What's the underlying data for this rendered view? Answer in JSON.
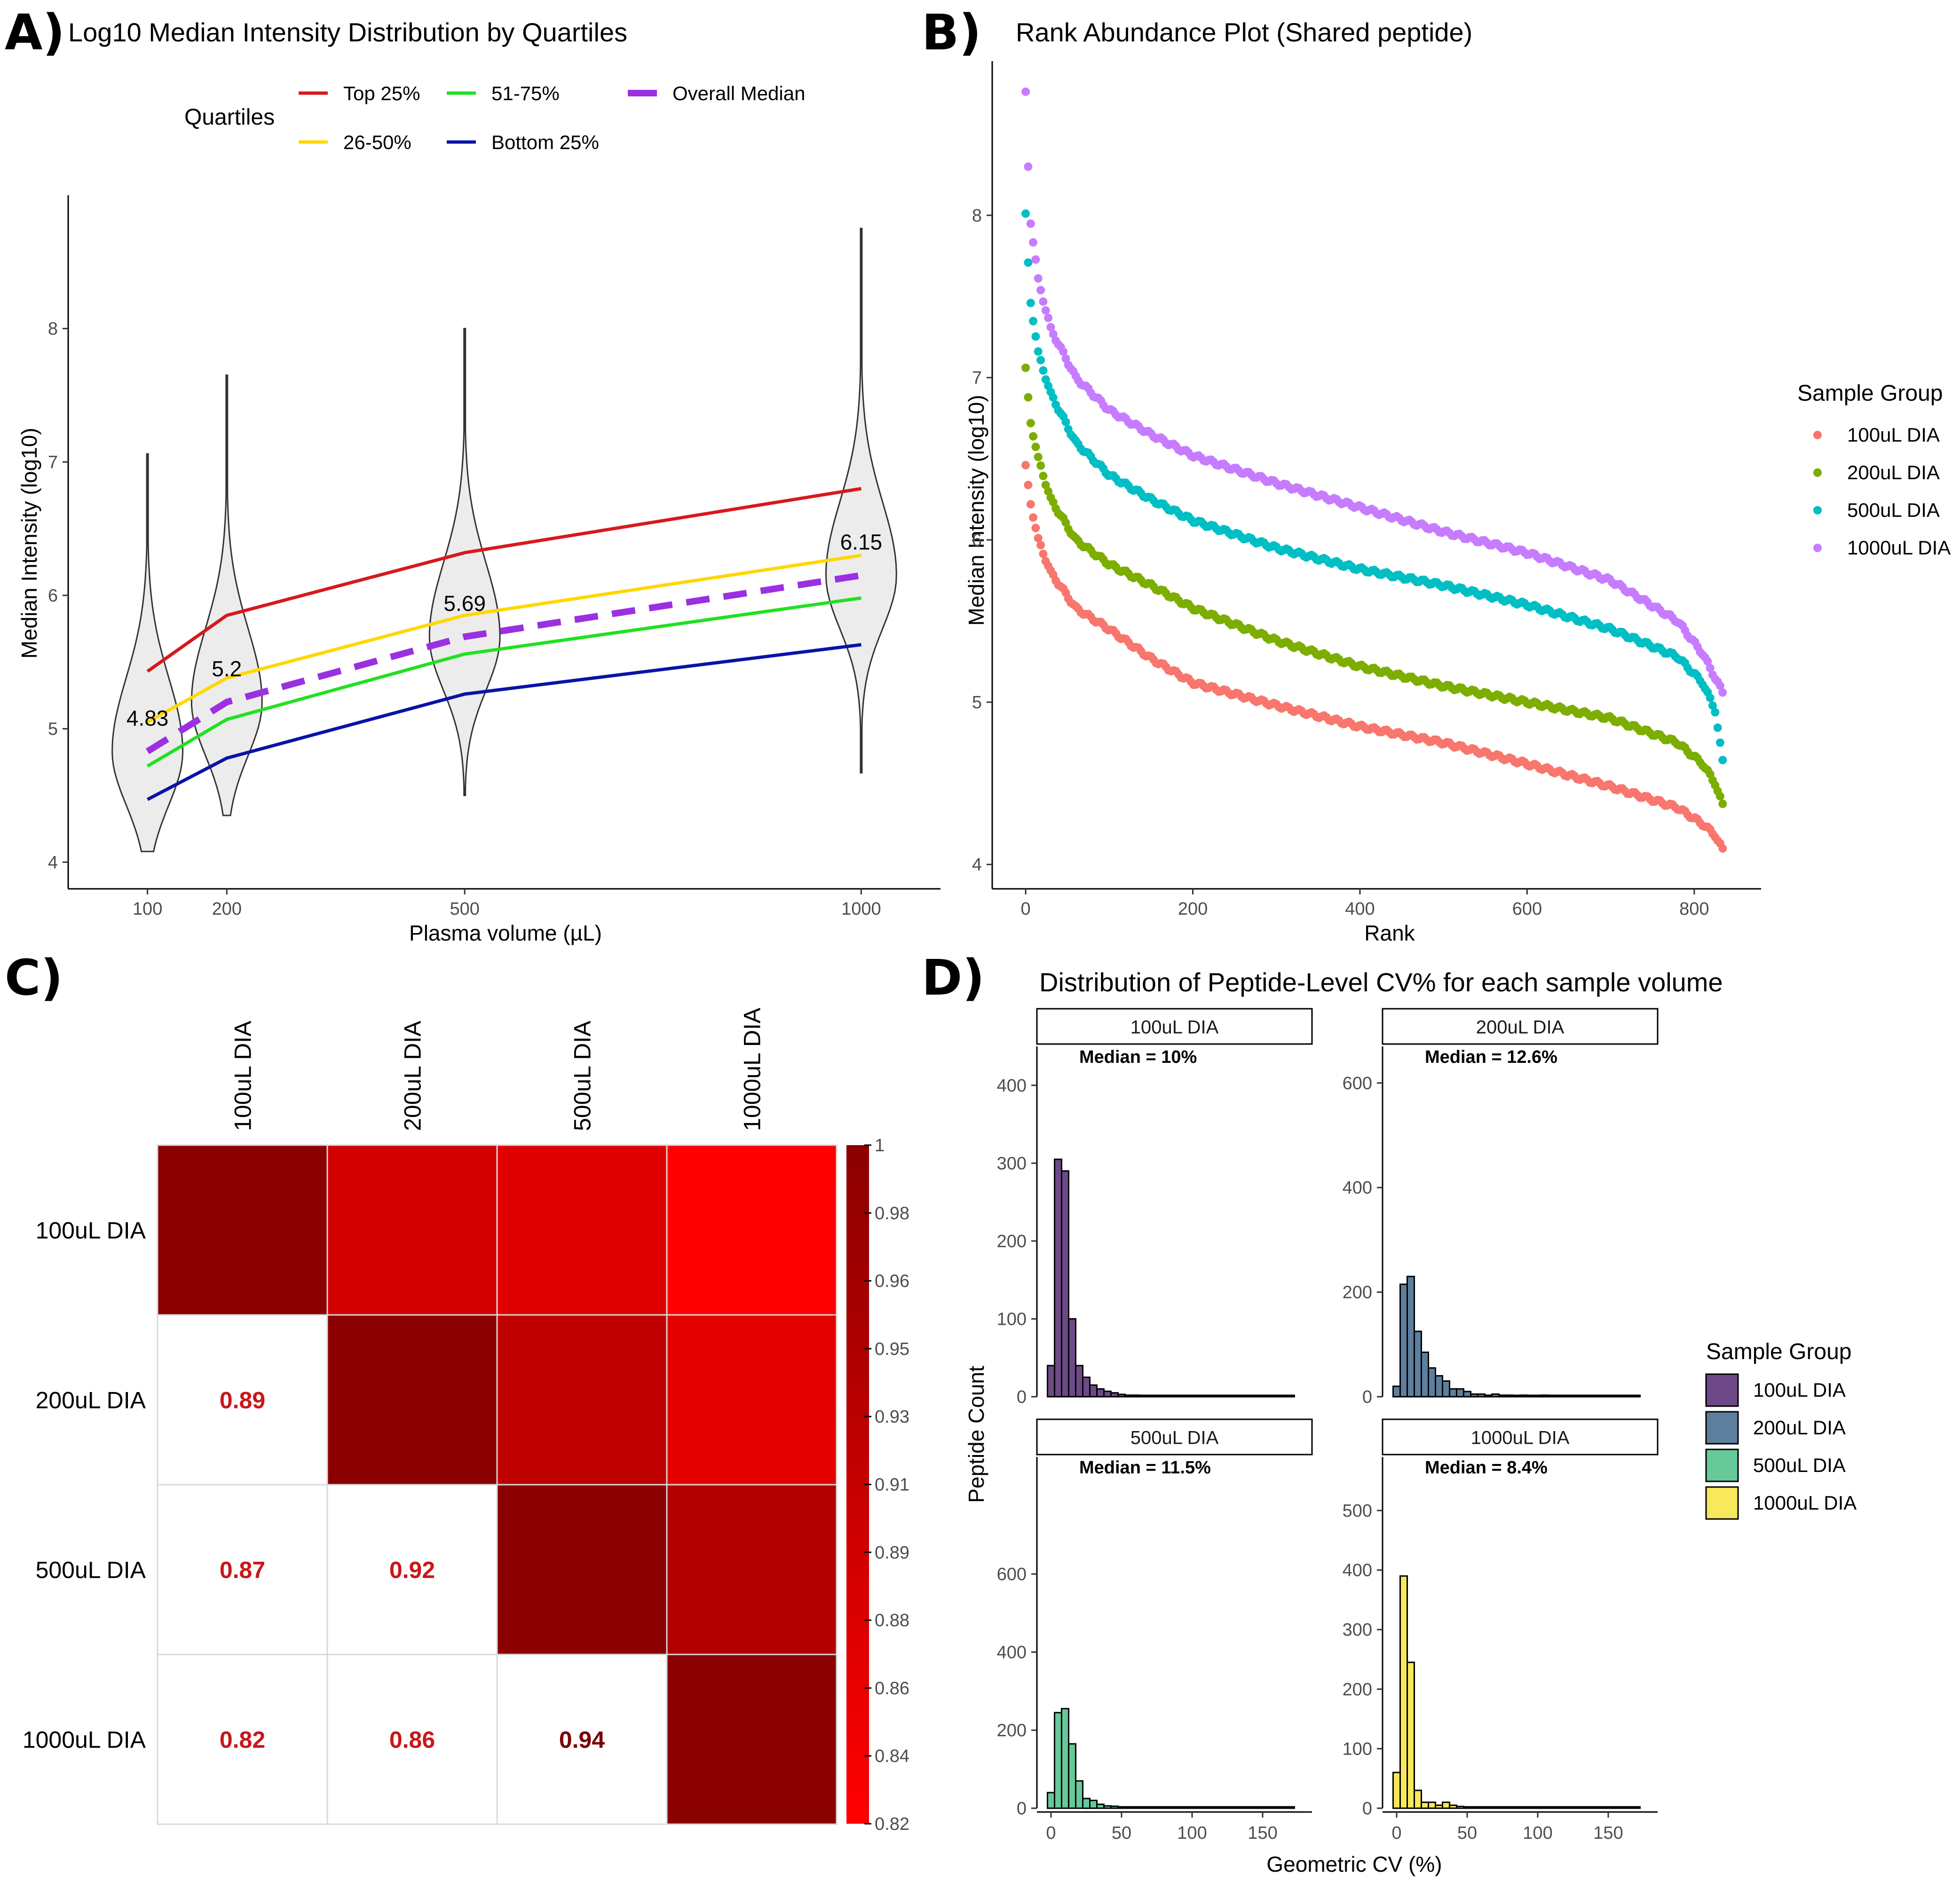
{
  "panels": {
    "A": {
      "letter": "A)",
      "title": "Log10 Median Intensity Distribution by Quartiles",
      "legend_title": "Quartiles",
      "legend": [
        {
          "label": "Top 25%",
          "color": "#d7191c",
          "dashed": false
        },
        {
          "label": "51-75%",
          "color": "#22e022",
          "dashed": false
        },
        {
          "label": "Overall Median",
          "color": "#9b30e0",
          "dashed": true
        },
        {
          "label": "26-50%",
          "color": "#ffd700",
          "dashed": false
        },
        {
          "label": "Bottom 25%",
          "color": "#0a12a8",
          "dashed": false
        }
      ]
    },
    "B": {
      "letter": "B)",
      "title": "Rank Abundance Plot (Shared peptide)",
      "legend_title": "Sample Group"
    },
    "C": {
      "letter": "C)",
      "labels": [
        "100uL DIA",
        "200uL DIA",
        "500uL DIA",
        "1000uL DIA"
      ],
      "colorbar_ticks": [
        "1",
        "0.98",
        "0.96",
        "0.95",
        "0.93",
        "0.91",
        "0.89",
        "0.88",
        "0.86",
        "0.84",
        "0.82"
      ],
      "colors": {
        "low": "#ff0000",
        "high": "#8b0000"
      }
    },
    "D": {
      "letter": "D)",
      "title": "Distribution of Peptide-Level CV% for each sample volume",
      "legend_title": "Sample Group"
    }
  },
  "chart_data": [
    {
      "id": "A",
      "type": "line",
      "title": "Log10 Median Intensity Distribution by Quartiles",
      "xlabel": "Plasma volume (µL)",
      "ylabel": "Median Intensity (log10)",
      "x": [
        100,
        200,
        500,
        1000
      ],
      "xticks": [
        "100",
        "200",
        "500",
        "1000"
      ],
      "xlim": [
        0,
        1100
      ],
      "ylim": [
        3.8,
        9.0
      ],
      "yticks": [
        "4",
        "5",
        "6",
        "7",
        "8"
      ],
      "series": [
        {
          "name": "Top 25%",
          "color": "#d7191c",
          "values": [
            5.43,
            5.85,
            6.32,
            6.8
          ]
        },
        {
          "name": "26-50%",
          "color": "#ffd700",
          "values": [
            5.05,
            5.38,
            5.85,
            6.3
          ]
        },
        {
          "name": "Overall Median",
          "color": "#9b30e0",
          "dashed": true,
          "values": [
            4.83,
            5.2,
            5.69,
            6.15
          ]
        },
        {
          "name": "51-75%",
          "color": "#22e022",
          "values": [
            4.72,
            5.07,
            5.56,
            5.98
          ]
        },
        {
          "name": "Bottom 25%",
          "color": "#0a12a8",
          "values": [
            4.47,
            4.78,
            5.26,
            5.63
          ]
        }
      ],
      "violins": [
        {
          "x": 100,
          "min": 4.08,
          "max": 7.06,
          "label": "4.83"
        },
        {
          "x": 200,
          "min": 4.35,
          "max": 7.65,
          "label": "5.2"
        },
        {
          "x": 500,
          "min": 4.5,
          "max": 8.0,
          "label": "5.69"
        },
        {
          "x": 1000,
          "min": 4.67,
          "max": 8.75,
          "label": "6.15"
        }
      ]
    },
    {
      "id": "B",
      "type": "scatter",
      "title": "Rank Abundance Plot (Shared peptide)",
      "xlabel": "Rank",
      "ylabel": "Median Intensity (log10)",
      "xlim": [
        -40,
        880
      ],
      "ylim": [
        3.85,
        8.95
      ],
      "xticks": [
        "0",
        "200",
        "400",
        "600",
        "800"
      ],
      "yticks": [
        "4",
        "5",
        "6",
        "7",
        "8"
      ],
      "n_ranks": 835,
      "series": [
        {
          "name": "100uL DIA",
          "color": "#f8766d",
          "profile": [
            [
              0,
              6.45
            ],
            [
              5,
              6.25
            ],
            [
              15,
              6.0
            ],
            [
              30,
              5.8
            ],
            [
              60,
              5.58
            ],
            [
              100,
              5.45
            ],
            [
              150,
              5.27
            ],
            [
              200,
              5.12
            ],
            [
              300,
              4.98
            ],
            [
              400,
              4.85
            ],
            [
              500,
              4.75
            ],
            [
              600,
              4.62
            ],
            [
              700,
              4.48
            ],
            [
              780,
              4.35
            ],
            [
              810,
              4.25
            ],
            [
              825,
              4.18
            ],
            [
              835,
              4.08
            ]
          ]
        },
        {
          "name": "200uL DIA",
          "color": "#7cae00",
          "profile": [
            [
              0,
              7.05
            ],
            [
              5,
              6.75
            ],
            [
              15,
              6.5
            ],
            [
              30,
              6.25
            ],
            [
              60,
              6.0
            ],
            [
              100,
              5.85
            ],
            [
              150,
              5.72
            ],
            [
              200,
              5.58
            ],
            [
              300,
              5.38
            ],
            [
              400,
              5.22
            ],
            [
              500,
              5.1
            ],
            [
              600,
              5.0
            ],
            [
              700,
              4.9
            ],
            [
              780,
              4.75
            ],
            [
              810,
              4.62
            ],
            [
              825,
              4.5
            ],
            [
              835,
              4.35
            ]
          ]
        },
        {
          "name": "500uL DIA",
          "color": "#00bfc4",
          "profile": [
            [
              0,
              8.0
            ],
            [
              5,
              7.5
            ],
            [
              15,
              7.15
            ],
            [
              30,
              6.9
            ],
            [
              60,
              6.6
            ],
            [
              100,
              6.4
            ],
            [
              150,
              6.25
            ],
            [
              200,
              6.12
            ],
            [
              300,
              5.95
            ],
            [
              400,
              5.82
            ],
            [
              500,
              5.72
            ],
            [
              600,
              5.6
            ],
            [
              700,
              5.45
            ],
            [
              780,
              5.28
            ],
            [
              810,
              5.12
            ],
            [
              825,
              4.95
            ],
            [
              835,
              4.6
            ]
          ]
        },
        {
          "name": "1000uL DIA",
          "color": "#c77cff",
          "profile": [
            [
              0,
              8.75
            ],
            [
              5,
              8.0
            ],
            [
              15,
              7.6
            ],
            [
              30,
              7.3
            ],
            [
              60,
              7.0
            ],
            [
              100,
              6.8
            ],
            [
              150,
              6.65
            ],
            [
              200,
              6.52
            ],
            [
              300,
              6.35
            ],
            [
              400,
              6.2
            ],
            [
              500,
              6.05
            ],
            [
              600,
              5.92
            ],
            [
              700,
              5.75
            ],
            [
              780,
              5.5
            ],
            [
              810,
              5.3
            ],
            [
              825,
              5.15
            ],
            [
              835,
              5.05
            ]
          ]
        }
      ]
    },
    {
      "id": "C",
      "type": "heatmap",
      "labels": [
        "100uL DIA",
        "200uL DIA",
        "500uL DIA",
        "1000uL DIA"
      ],
      "matrix": [
        [
          1.0,
          0.89,
          0.87,
          0.82
        ],
        [
          0.89,
          1.0,
          0.92,
          0.86
        ],
        [
          0.87,
          0.92,
          1.0,
          0.94
        ],
        [
          0.82,
          0.86,
          0.94,
          1.0
        ]
      ],
      "value_labels": [
        {
          "row": 1,
          "col": 0,
          "text": "0.89"
        },
        {
          "row": 2,
          "col": 0,
          "text": "0.87"
        },
        {
          "row": 2,
          "col": 1,
          "text": "0.92"
        },
        {
          "row": 3,
          "col": 0,
          "text": "0.82"
        },
        {
          "row": 3,
          "col": 1,
          "text": "0.86"
        },
        {
          "row": 3,
          "col": 2,
          "text": "0.94"
        }
      ],
      "range": [
        0.82,
        1.0
      ]
    },
    {
      "id": "D",
      "type": "bar",
      "subtype": "histogram",
      "title": "Distribution of Peptide-Level CV% for each sample volume",
      "xlabel": "Geometric CV (%)",
      "ylabel": "Peptide Count",
      "bin_width": 5,
      "bin_start": -2.5,
      "xlim": [
        -10,
        185
      ],
      "xticks": [
        "0",
        "50",
        "100",
        "150"
      ],
      "facets": [
        {
          "name": "100uL DIA",
          "strip": "100uL DIA",
          "median_label": "Median = 10%",
          "color": "#6d4a87",
          "ymax": 450,
          "yticks": [
            "0",
            "100",
            "200",
            "300",
            "400"
          ],
          "counts": [
            40,
            305,
            290,
            100,
            40,
            25,
            15,
            10,
            7,
            5,
            3,
            2,
            2,
            1,
            1,
            1,
            1,
            0,
            1,
            1,
            0,
            0,
            0,
            0,
            1,
            0,
            0,
            0,
            0,
            0,
            0,
            0,
            0,
            0,
            1
          ]
        },
        {
          "name": "200uL DIA",
          "strip": "200uL DIA",
          "median_label": "Median = 12.6%",
          "color": "#5c7f9e",
          "ymax": 670,
          "yticks": [
            "0",
            "200",
            "400",
            "600"
          ],
          "counts": [
            20,
            215,
            230,
            125,
            85,
            55,
            40,
            30,
            15,
            15,
            10,
            5,
            5,
            3,
            5,
            3,
            3,
            2,
            3,
            1,
            2,
            3,
            1,
            1,
            2,
            1,
            1,
            1,
            1,
            2,
            0,
            1,
            1,
            1,
            1
          ]
        },
        {
          "name": "500uL DIA",
          "strip": "500uL DIA",
          "median_label": "Median = 11.5%",
          "color": "#66c99a",
          "ymax": 900,
          "yticks": [
            "0",
            "200",
            "400",
            "600"
          ],
          "counts": [
            40,
            245,
            255,
            165,
            70,
            25,
            20,
            10,
            6,
            5,
            3,
            3,
            2,
            2,
            1,
            1,
            1,
            1,
            0,
            1,
            0,
            0,
            0,
            0,
            0,
            0,
            0,
            0,
            0,
            0,
            0,
            0,
            0,
            0,
            1
          ]
        },
        {
          "name": "1000uL DIA",
          "strip": "1000uL DIA",
          "median_label": "Median = 8.4%",
          "color": "#f7e85c",
          "ymax": 590,
          "yticks": [
            "0",
            "100",
            "200",
            "300",
            "400",
            "500"
          ],
          "counts": [
            60,
            390,
            245,
            30,
            10,
            10,
            5,
            10,
            5,
            3,
            2,
            2,
            1,
            1,
            1,
            1,
            1,
            0,
            1,
            1,
            0,
            0,
            0,
            0,
            1,
            0,
            0,
            0,
            0,
            0,
            0,
            0,
            0,
            0,
            1
          ]
        }
      ]
    }
  ]
}
